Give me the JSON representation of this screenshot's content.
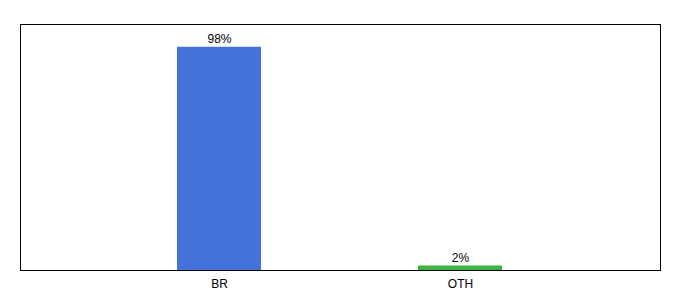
{
  "chart_data": {
    "type": "bar",
    "categories": [
      "BR",
      "OTH"
    ],
    "values": [
      98,
      2
    ],
    "value_labels": [
      "98%",
      "2%"
    ],
    "colors": [
      "#4472DB",
      "#3CB543"
    ],
    "ylim": [
      0,
      108
    ],
    "tick_labels": "x",
    "data_labels": true
  }
}
